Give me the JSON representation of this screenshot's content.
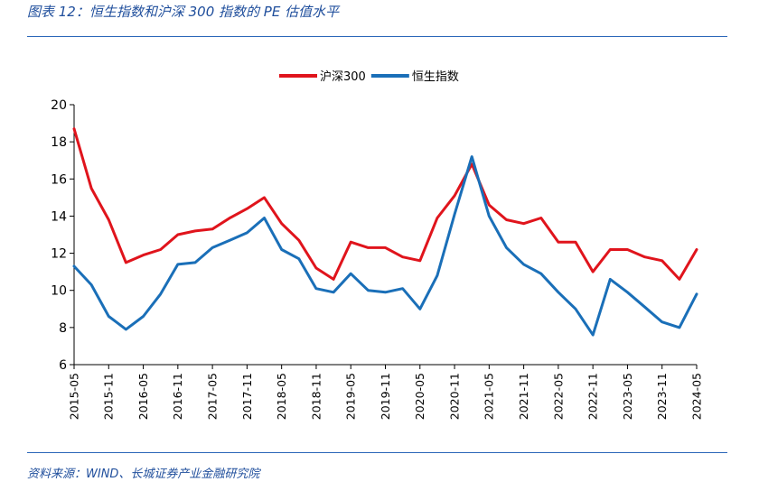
{
  "figure": {
    "title": "图表 12：恒生指数和沪深 300 指数的 PE 估值水平",
    "source": "资料来源：WIND、长城证券产业金融研究院"
  },
  "chart_data": {
    "type": "line",
    "x_axis": {
      "ticks": [
        "2015-05",
        "2015-11",
        "2016-05",
        "2016-11",
        "2017-05",
        "2017-11",
        "2018-05",
        "2018-11",
        "2019-05",
        "2019-11",
        "2020-05",
        "2020-11",
        "2021-05",
        "2021-11",
        "2022-05",
        "2022-11",
        "2023-05",
        "2023-11",
        "2024-05"
      ],
      "label_rotation": "vertical"
    },
    "y_axis": {
      "min": 6,
      "max": 20,
      "ticks": [
        6,
        8,
        10,
        12,
        14,
        16,
        18,
        20
      ]
    },
    "grid": false,
    "legend": {
      "placement": "top-center"
    },
    "x": [
      "2015-05",
      "2015-08",
      "2015-11",
      "2016-02",
      "2016-05",
      "2016-08",
      "2016-11",
      "2017-02",
      "2017-05",
      "2017-08",
      "2017-11",
      "2018-02",
      "2018-05",
      "2018-08",
      "2018-11",
      "2019-02",
      "2019-05",
      "2019-08",
      "2019-11",
      "2020-02",
      "2020-05",
      "2020-08",
      "2020-11",
      "2021-02",
      "2021-05",
      "2021-08",
      "2021-11",
      "2022-02",
      "2022-05",
      "2022-08",
      "2022-11",
      "2023-02",
      "2023-05",
      "2023-08",
      "2023-11",
      "2024-02",
      "2024-05"
    ],
    "series": [
      {
        "name": "沪深300",
        "color": "#e0141c",
        "values": [
          18.7,
          15.5,
          13.8,
          11.5,
          11.9,
          12.2,
          13.0,
          13.2,
          13.3,
          13.9,
          14.4,
          15.0,
          13.6,
          12.7,
          11.2,
          10.6,
          12.6,
          12.3,
          12.3,
          11.8,
          11.6,
          13.9,
          15.1,
          16.8,
          14.6,
          13.8,
          13.6,
          13.9,
          12.6,
          12.6,
          11.0,
          12.2,
          12.2,
          11.8,
          11.6,
          10.6,
          12.2
        ]
      },
      {
        "name": "恒生指数",
        "color": "#1a6fb8",
        "values": [
          11.3,
          10.3,
          8.6,
          7.9,
          8.6,
          9.8,
          11.4,
          11.5,
          12.3,
          12.7,
          13.1,
          13.9,
          12.2,
          11.7,
          10.1,
          9.9,
          10.9,
          10.0,
          9.9,
          10.1,
          9.0,
          10.8,
          14.1,
          17.2,
          14.0,
          12.3,
          11.4,
          10.9,
          9.9,
          9.0,
          7.6,
          10.6,
          9.9,
          9.1,
          8.3,
          8.0,
          9.8
        ]
      }
    ]
  }
}
